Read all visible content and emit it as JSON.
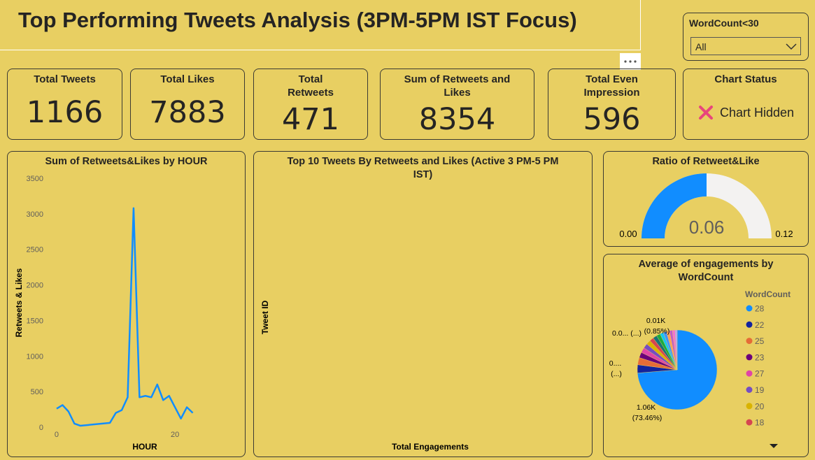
{
  "title": "Top Performing Tweets Analysis (3PM-5PM IST Focus)",
  "slicer": {
    "label": "WordCount<30",
    "value": "All"
  },
  "cards": [
    {
      "label": "Total Tweets",
      "value": 1166
    },
    {
      "label": "Total Likes",
      "value": 7883
    },
    {
      "label": "Total Retweets",
      "value": 471
    },
    {
      "label": "Sum of Retweets and Likes",
      "value": 8354
    },
    {
      "label": "Total Even Impression",
      "value": 596
    }
  ],
  "status": {
    "label": "Chart Status",
    "value": "Chart Hidden"
  },
  "chart_data": [
    {
      "type": "line",
      "title": "Sum of Retweets&Likes by HOUR",
      "x_label": "HOUR",
      "y_label": "Retweets & Likes",
      "x": [
        0,
        1,
        2,
        3,
        4,
        9,
        10,
        11,
        12,
        13,
        14,
        15,
        16,
        17,
        18,
        19,
        20,
        21,
        22,
        23
      ],
      "values": [
        260,
        310,
        220,
        50,
        20,
        60,
        200,
        240,
        420,
        3080,
        420,
        440,
        420,
        600,
        380,
        440,
        280,
        120,
        280,
        200
      ],
      "color": "#118dff",
      "xlim": [
        -1,
        24
      ],
      "xticks": [
        0,
        20
      ],
      "ylim": [
        0,
        3500
      ],
      "yticks": [
        0,
        500,
        1000,
        1500,
        2000,
        2500,
        3000,
        3500
      ]
    },
    {
      "type": "bar",
      "title": "Top 10 Tweets By Retweets and Likes (Active 3 PM-5 PM IST)",
      "x_label": "Total Engagements",
      "y_label": "Tweet ID"
    },
    {
      "type": "gauge",
      "title": "Ratio of Retweet&Like",
      "value": 0.06,
      "range": [
        {
          "value": 0,
          "label": "0.00"
        },
        0.12
      ],
      "color": "#118dff",
      "track_color": "#f3f2f1"
    },
    {
      "type": "pie",
      "title": "Average of engagements by WordCount",
      "legend_title": "WordCount",
      "categories": [
        "28",
        "22",
        "25",
        "23",
        "27",
        "19",
        "20",
        "18",
        null,
        null,
        null,
        null,
        null,
        null,
        null,
        null
      ],
      "values": [
        1060,
        48,
        42,
        32,
        30,
        28,
        26,
        24,
        24,
        22,
        20,
        19,
        18,
        17,
        16,
        12
      ],
      "value_labels": [
        "1.06K (73.46%)",
        "0.... (...)",
        null,
        null,
        null,
        null,
        null,
        null,
        null,
        null,
        "0.0... (...)",
        null,
        null,
        null,
        null,
        "0.01K (0.85%)"
      ],
      "colors": [
        "#118dff",
        "#12239e",
        "#e66c37",
        "#6b007b",
        "#e044a7",
        "#744ec2",
        "#d9b300",
        "#d64550",
        "#197278",
        "#1aab40",
        "#15c6f4",
        "#4092ff",
        "#ffa058",
        "#be5dc9",
        "#f472d0",
        "#b5a1ff"
      ]
    }
  ]
}
